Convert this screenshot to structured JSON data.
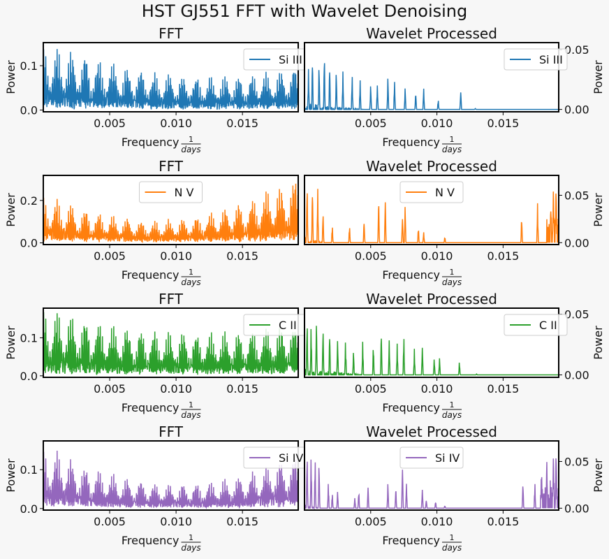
{
  "figure": {
    "title": "HST GJ551 FFT with Wavelet Denoising",
    "background": "#f7f7f7"
  },
  "chart_data": [
    {
      "type": "line",
      "title": "FFT",
      "ylabel": "Power",
      "xlabel": "Frequency 1/days",
      "xlim": [
        0.0,
        0.0192
      ],
      "xticks": [
        0.005,
        0.01,
        0.015
      ],
      "xtick_labels": [
        "0.005",
        "0.010",
        "0.015"
      ],
      "ylim": [
        -0.004,
        0.152
      ],
      "yticks": [
        0.0,
        0.1
      ],
      "ytick_labels": [
        "0.0",
        "0.1"
      ],
      "yaxis_side": "left",
      "series": [
        {
          "name": "Si III",
          "color": "#1f77b4",
          "pattern": "fft",
          "seed": 11,
          "amp_start": 0.145,
          "amp_end": 0.09,
          "amp_curve": "decay",
          "floor": 0.0
        }
      ],
      "legend": "upper right"
    },
    {
      "type": "line",
      "title": "Wavelet Processed",
      "ylabel": "Power",
      "xlabel": "Frequency 1/days",
      "xlim": [
        0.0,
        0.0192
      ],
      "xticks": [
        0.005,
        0.01,
        0.015
      ],
      "xtick_labels": [
        "0.005",
        "0.010",
        "0.015"
      ],
      "ylim": [
        -0.002,
        0.056
      ],
      "yticks": [
        0.0,
        0.05
      ],
      "ytick_labels": [
        "0.00",
        "0.05"
      ],
      "yaxis_side": "right",
      "series": [
        {
          "name": "Si III",
          "color": "#1f77b4",
          "pattern": "spikes",
          "seed": 21,
          "floor": 0.0,
          "spikes": [
            [
              0.0003,
              0.035
            ],
            [
              0.0006,
              0.047
            ],
            [
              0.0011,
              0.042
            ],
            [
              0.0015,
              0.052
            ],
            [
              0.0019,
              0.04
            ],
            [
              0.0024,
              0.036
            ],
            [
              0.0029,
              0.033
            ],
            [
              0.0036,
              0.03
            ],
            [
              0.0042,
              0.026
            ],
            [
              0.005,
              0.023
            ],
            [
              0.0055,
              0.022
            ],
            [
              0.0063,
              0.03
            ],
            [
              0.0068,
              0.026
            ],
            [
              0.0076,
              0.02
            ],
            [
              0.0084,
              0.015
            ],
            [
              0.009,
              0.019
            ],
            [
              0.0101,
              0.009
            ],
            [
              0.0118,
              0.017
            ],
            [
              0.0129,
              0.0008
            ]
          ],
          "early_noise_end": 0.0045
        }
      ],
      "legend": "upper right"
    },
    {
      "type": "line",
      "title": "FFT",
      "ylabel": "Power",
      "xlabel": "Frequency 1/days",
      "xlim": [
        0.0,
        0.0192
      ],
      "xticks": [
        0.005,
        0.01,
        0.015
      ],
      "xtick_labels": [
        "0.005",
        "0.010",
        "0.015"
      ],
      "ylim": [
        -0.008,
        0.318
      ],
      "yticks": [
        0.0,
        0.2
      ],
      "ytick_labels": [
        "0.0",
        "0.2"
      ],
      "yaxis_side": "left",
      "series": [
        {
          "name": "N V",
          "color": "#ff7f0e",
          "pattern": "fft",
          "seed": 31,
          "amp_start": 0.22,
          "amp_end": 0.31,
          "amp_curve": "u",
          "floor": 0.0
        }
      ],
      "legend": "upper center"
    },
    {
      "type": "line",
      "title": "Wavelet Processed",
      "ylabel": "Power",
      "xlabel": "Frequency 1/days",
      "xlim": [
        0.0,
        0.0192
      ],
      "xticks": [
        0.005,
        0.01,
        0.015
      ],
      "xtick_labels": [
        "0.005",
        "0.010",
        "0.015"
      ],
      "ylim": [
        -0.002,
        0.071
      ],
      "yticks": [
        0.0,
        0.05
      ],
      "ytick_labels": [
        "0.00",
        "0.05"
      ],
      "yaxis_side": "right",
      "series": [
        {
          "name": "N V",
          "color": "#ff7f0e",
          "pattern": "spikes",
          "seed": 41,
          "floor": 0.0,
          "spikes": [
            [
              0.0002,
              0.068
            ],
            [
              0.0006,
              0.064
            ],
            [
              0.001,
              0.06
            ],
            [
              0.0014,
              0.035
            ],
            [
              0.0021,
              0.02
            ],
            [
              0.0034,
              0.02
            ],
            [
              0.0045,
              0.025
            ],
            [
              0.0056,
              0.05
            ],
            [
              0.0061,
              0.05
            ],
            [
              0.0074,
              0.03
            ],
            [
              0.0076,
              0.043
            ],
            [
              0.0086,
              0.018
            ],
            [
              0.009,
              0.012
            ],
            [
              0.0106,
              0.007
            ],
            [
              0.0164,
              0.03
            ],
            [
              0.0176,
              0.042
            ],
            [
              0.0186,
              0.045
            ],
            [
              0.0188,
              0.066
            ],
            [
              0.019,
              0.068
            ]
          ],
          "early_noise_end": 0.0015,
          "late_noise_start": 0.0183
        }
      ],
      "legend": "upper center"
    },
    {
      "type": "line",
      "title": "FFT",
      "ylabel": "Power",
      "xlabel": "Frequency 1/days",
      "xlim": [
        0.0,
        0.0192
      ],
      "xticks": [
        0.005,
        0.01,
        0.015
      ],
      "xtick_labels": [
        "0.005",
        "0.010",
        "0.015"
      ],
      "ylim": [
        -0.004,
        0.178
      ],
      "yticks": [
        0.0,
        0.1
      ],
      "ytick_labels": [
        "0.0",
        "0.1"
      ],
      "yaxis_side": "left",
      "series": [
        {
          "name": "C II",
          "color": "#2ca02c",
          "pattern": "fft",
          "seed": 51,
          "amp_start": 0.172,
          "amp_end": 0.13,
          "amp_curve": "decay",
          "floor": 0.0
        }
      ],
      "legend": "upper right"
    },
    {
      "type": "line",
      "title": "Wavelet Processed",
      "ylabel": "Power",
      "xlabel": "Frequency 1/days",
      "xlim": [
        0.0,
        0.0192
      ],
      "xticks": [
        0.005,
        0.01,
        0.015
      ],
      "xtick_labels": [
        "0.005",
        "0.010",
        "0.015"
      ],
      "ylim": [
        -0.002,
        0.055
      ],
      "yticks": [
        0.0,
        0.05
      ],
      "ytick_labels": [
        "0.00",
        "0.05"
      ],
      "yaxis_side": "right",
      "series": [
        {
          "name": "C II",
          "color": "#2ca02c",
          "pattern": "spikes",
          "seed": 61,
          "floor": 0.0,
          "spikes": [
            [
              0.0002,
              0.05
            ],
            [
              0.0005,
              0.045
            ],
            [
              0.0009,
              0.048
            ],
            [
              0.0014,
              0.043
            ],
            [
              0.0019,
              0.038
            ],
            [
              0.0025,
              0.032
            ],
            [
              0.0031,
              0.03
            ],
            [
              0.0037,
              0.022
            ],
            [
              0.0044,
              0.03
            ],
            [
              0.0052,
              0.028
            ],
            [
              0.0058,
              0.038
            ],
            [
              0.0064,
              0.03
            ],
            [
              0.007,
              0.027
            ],
            [
              0.0075,
              0.035
            ],
            [
              0.0083,
              0.022
            ],
            [
              0.0089,
              0.025
            ],
            [
              0.0098,
              0.015
            ],
            [
              0.0102,
              0.015
            ],
            [
              0.0117,
              0.012
            ],
            [
              0.013,
              0.0008
            ]
          ],
          "early_noise_end": 0.0045
        }
      ],
      "legend": "upper right"
    },
    {
      "type": "line",
      "title": "FFT",
      "ylabel": "Power",
      "xlabel": "Frequency 1/days",
      "xlim": [
        0.0,
        0.0192
      ],
      "xticks": [
        0.005,
        0.01,
        0.015
      ],
      "xtick_labels": [
        "0.005",
        "0.010",
        "0.015"
      ],
      "ylim": [
        -0.004,
        0.174
      ],
      "yticks": [
        0.0,
        0.1
      ],
      "ytick_labels": [
        "0.0",
        "0.1"
      ],
      "yaxis_side": "left",
      "series": [
        {
          "name": "Si IV",
          "color": "#9467bd",
          "pattern": "fft",
          "seed": 71,
          "amp_start": 0.15,
          "amp_end": 0.13,
          "amp_curve": "dip",
          "floor": 0.0
        }
      ],
      "legend": "upper right"
    },
    {
      "type": "line",
      "title": "Wavelet Processed",
      "ylabel": "Power",
      "xlabel": "Frequency 1/days",
      "xlim": [
        0.0,
        0.0192
      ],
      "xticks": [
        0.005,
        0.01,
        0.015
      ],
      "xtick_labels": [
        "0.005",
        "0.010",
        "0.015"
      ],
      "ylim": [
        -0.002,
        0.072
      ],
      "yticks": [
        0.0,
        0.05
      ],
      "ytick_labels": [
        "0.00",
        "0.05"
      ],
      "yaxis_side": "right",
      "series": [
        {
          "name": "Si IV",
          "color": "#9467bd",
          "pattern": "spikes",
          "seed": 81,
          "floor": 0.0,
          "spikes": [
            [
              0.0002,
              0.065
            ],
            [
              0.0005,
              0.062
            ],
            [
              0.0008,
              0.06
            ],
            [
              0.0011,
              0.055
            ],
            [
              0.0018,
              0.03
            ],
            [
              0.0021,
              0.018
            ],
            [
              0.0025,
              0.02
            ],
            [
              0.0038,
              0.012
            ],
            [
              0.0041,
              0.02
            ],
            [
              0.0048,
              0.025
            ],
            [
              0.0063,
              0.03
            ],
            [
              0.0069,
              0.024
            ],
            [
              0.0074,
              0.05
            ],
            [
              0.0077,
              0.028
            ],
            [
              0.0089,
              0.022
            ],
            [
              0.0092,
              0.01
            ],
            [
              0.0099,
              0.008
            ],
            [
              0.0106,
              0.003
            ],
            [
              0.0165,
              0.03
            ],
            [
              0.0174,
              0.03
            ],
            [
              0.0179,
              0.05
            ],
            [
              0.0183,
              0.058
            ],
            [
              0.0188,
              0.065
            ],
            [
              0.019,
              0.07
            ]
          ],
          "early_noise_end": 0.0012,
          "late_noise_start": 0.0178
        }
      ],
      "legend": "upper center"
    }
  ]
}
